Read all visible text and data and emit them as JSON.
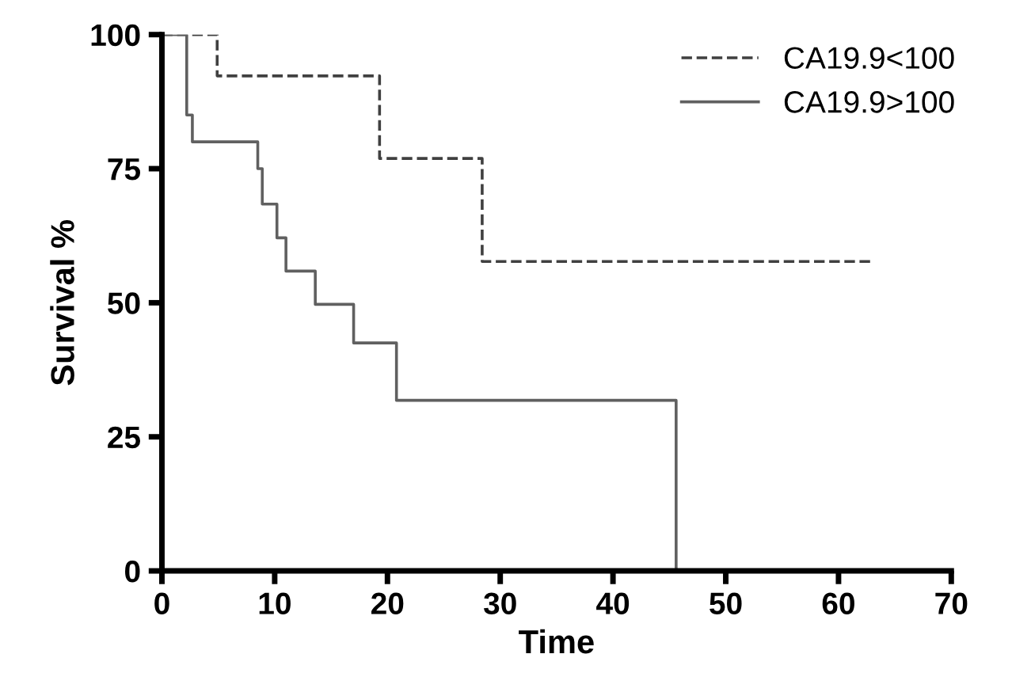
{
  "chart_data": {
    "type": "step",
    "xlabel": "Time",
    "ylabel": "Survival %",
    "xlim": [
      0,
      70
    ],
    "xticks": [
      0,
      10,
      20,
      30,
      40,
      50,
      60,
      70
    ],
    "ylim": [
      0,
      100
    ],
    "yticks": [
      0,
      25,
      50,
      75,
      100
    ],
    "grid": false,
    "legend": "top right",
    "marker": "none",
    "series": [
      {
        "name": "CA19.9<100",
        "color": "#404040",
        "line_style": "dashed",
        "x": [
          0,
          4.9,
          19.3,
          28.4,
          63.0
        ],
        "values": [
          100,
          92.3,
          76.9,
          57.7,
          57.7
        ]
      },
      {
        "name": "CA19.9>100",
        "color": "#606060",
        "line_style": "solid",
        "x": [
          0,
          2.2,
          2.7,
          8.5,
          8.9,
          10.2,
          11.0,
          13.6,
          17.0,
          20.8,
          45.6
        ],
        "values": [
          100,
          85,
          80,
          75,
          68.4,
          62.1,
          55.9,
          49.7,
          42.5,
          31.8,
          0
        ]
      }
    ]
  }
}
